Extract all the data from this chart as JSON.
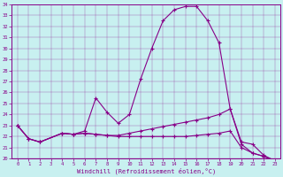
{
  "xlabel": "Windchill (Refroidissement éolien,°C)",
  "background_color": "#c8f0f0",
  "line_color": "#880088",
  "xlim": [
    -0.5,
    23.5
  ],
  "ylim": [
    20,
    34
  ],
  "xticks": [
    0,
    1,
    2,
    3,
    4,
    5,
    6,
    7,
    8,
    9,
    10,
    11,
    12,
    13,
    14,
    15,
    16,
    17,
    18,
    19,
    20,
    21,
    22,
    23
  ],
  "yticks": [
    20,
    21,
    22,
    23,
    24,
    25,
    26,
    27,
    28,
    29,
    30,
    31,
    32,
    33,
    34
  ],
  "series1_x": [
    0,
    1,
    2,
    4,
    5,
    6,
    7,
    8,
    9,
    10,
    11,
    12,
    13,
    14,
    15,
    16,
    17,
    18,
    19,
    20,
    21,
    22,
    23
  ],
  "series1_y": [
    23.0,
    21.8,
    21.5,
    22.3,
    22.2,
    22.5,
    25.5,
    24.2,
    23.2,
    24.0,
    27.2,
    30.0,
    32.5,
    33.5,
    33.8,
    33.8,
    32.5,
    30.5,
    24.5,
    21.3,
    20.5,
    20.2,
    19.8
  ],
  "series2_x": [
    0,
    1,
    2,
    4,
    5,
    6,
    7,
    8,
    9,
    10,
    11,
    12,
    13,
    14,
    15,
    16,
    17,
    18,
    19,
    20,
    21,
    22,
    23
  ],
  "series2_y": [
    23.0,
    21.8,
    21.5,
    22.3,
    22.2,
    22.3,
    22.2,
    22.1,
    22.1,
    22.3,
    22.5,
    22.7,
    22.9,
    23.1,
    23.3,
    23.5,
    23.7,
    24.0,
    24.5,
    21.5,
    21.3,
    20.3,
    19.8
  ],
  "series3_x": [
    0,
    1,
    2,
    4,
    5,
    6,
    7,
    8,
    9,
    10,
    11,
    12,
    13,
    14,
    15,
    16,
    17,
    18,
    19,
    20,
    21,
    22,
    23
  ],
  "series3_y": [
    23.0,
    21.8,
    21.5,
    22.3,
    22.2,
    22.3,
    22.2,
    22.1,
    22.0,
    22.0,
    22.0,
    22.0,
    22.0,
    22.0,
    22.0,
    22.1,
    22.2,
    22.3,
    22.5,
    21.0,
    20.5,
    20.2,
    19.8
  ]
}
